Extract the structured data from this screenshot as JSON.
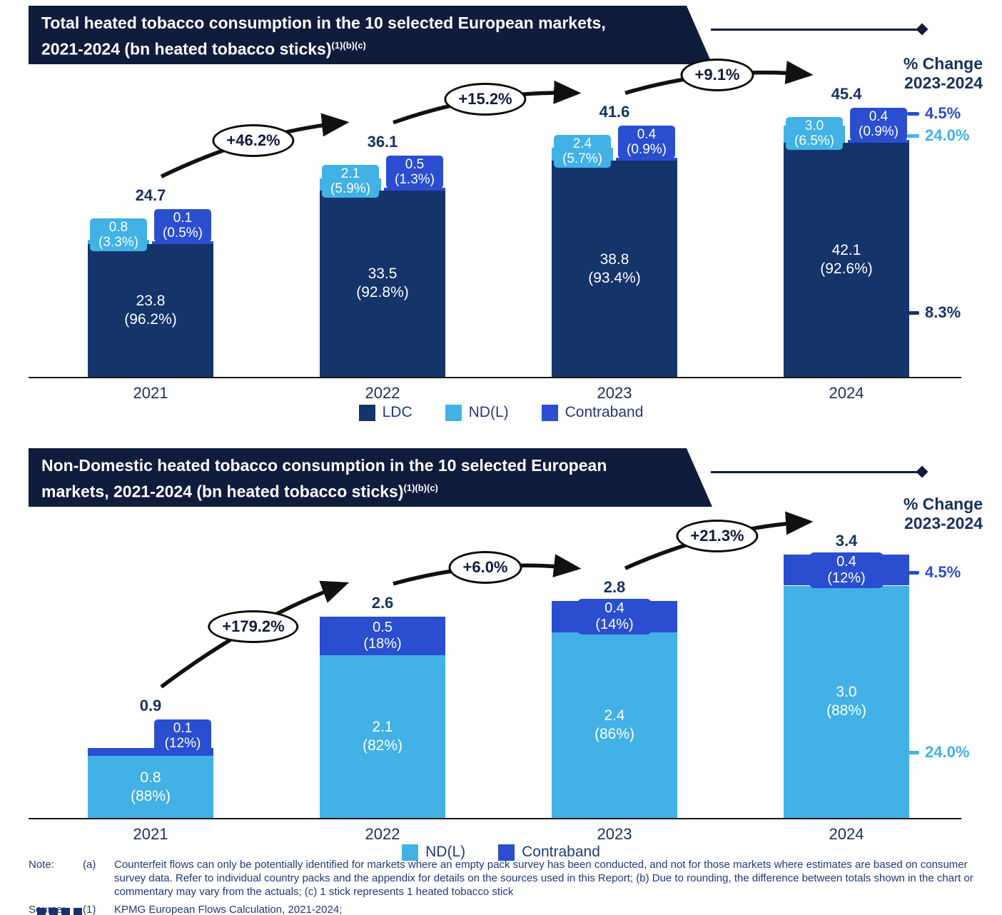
{
  "page": {
    "notes": {
      "note_label": "Note:",
      "note_marker": "(a)",
      "note_text": "Counterfeit flows can only be potentially identified for markets where an empty pack survey has been conducted, and not for those markets where estimates are based on consumer survey data.  Refer to individual country packs and the appendix for details on the sources used in this Report; (b) Due to rounding, the difference between totals shown in the chart or commentary may vary from the actuals; (c) 1 stick represents 1 heated tobacco stick",
      "source_label": "Source:",
      "source_marker": "(1)",
      "source_text": "KPMG European Flows Calculation, 2021-2024;"
    },
    "colors": {
      "banner_navy": "#101c3c",
      "ldc_navy": "#14346a",
      "ndl_light_blue": "#41b1e6",
      "contraband_blue": "#2a4ecf"
    }
  },
  "chart_data": [
    {
      "type": "bar",
      "stacked": true,
      "title_line1": "Total heated tobacco consumption in the 10 selected European markets,",
      "title_line2": "2021-2024 (bn heated tobacco sticks)",
      "title_sup": "(1)(b)(c)",
      "categories": [
        "2021",
        "2022",
        "2023",
        "2024"
      ],
      "series": [
        {
          "name": "LDC",
          "color": "#14346a",
          "values": [
            23.8,
            33.5,
            38.8,
            42.1
          ],
          "labels": [
            "23.8",
            "33.5",
            "38.8",
            "42.1"
          ],
          "pct_labels": [
            "(96.2%)",
            "(92.8%)",
            "(93.4%)",
            "(92.6%)"
          ]
        },
        {
          "name": "ND(L)",
          "color": "#41b1e6",
          "values": [
            0.8,
            2.1,
            2.4,
            3.0
          ],
          "labels": [
            "0.8",
            "2.1",
            "2.4",
            "3.0"
          ],
          "pct_labels": [
            "(3.3%)",
            "(5.9%)",
            "(5.7%)",
            "(6.5%)"
          ]
        },
        {
          "name": "Contraband",
          "color": "#2a4ecf",
          "values": [
            0.1,
            0.5,
            0.4,
            0.4
          ],
          "labels": [
            "0.1",
            "0.5",
            "0.4",
            "0.4"
          ],
          "pct_labels": [
            "(0.5%)",
            "(1.3%)",
            "(0.9%)",
            "(0.9%)"
          ]
        }
      ],
      "totals": [
        "24.7",
        "36.1",
        "41.6",
        "45.4"
      ],
      "growth_labels": [
        "+46.2%",
        "+15.2%",
        "+9.1%"
      ],
      "pct_change_header_line1": "% Change",
      "pct_change_header_line2": "2023-2024",
      "pct_change_items": [
        {
          "label": "4.5%",
          "series": "Contraband",
          "color": "#2a4ecf"
        },
        {
          "label": "24.0%",
          "series": "ND(L)",
          "color": "#41b1e6"
        },
        {
          "label": "8.3%",
          "series": "LDC",
          "color": "#14346a"
        }
      ],
      "legend": [
        "LDC",
        "ND(L)",
        "Contraband"
      ]
    },
    {
      "type": "bar",
      "stacked": true,
      "title_line1": "Non-Domestic heated tobacco consumption in the 10 selected European",
      "title_line2": "markets, 2021-2024 (bn heated tobacco sticks)",
      "title_sup": "(1)(b)(c)",
      "categories": [
        "2021",
        "2022",
        "2023",
        "2024"
      ],
      "series": [
        {
          "name": "ND(L)",
          "color": "#41b1e6",
          "values": [
            0.8,
            2.1,
            2.4,
            3.0
          ],
          "labels": [
            "0.8",
            "2.1",
            "2.4",
            "3.0"
          ],
          "pct_labels": [
            "(88%)",
            "(82%)",
            "(86%)",
            "(88%)"
          ]
        },
        {
          "name": "Contraband",
          "color": "#2a4ecf",
          "values": [
            0.1,
            0.5,
            0.4,
            0.4
          ],
          "labels": [
            "0.1",
            "0.5",
            "0.4",
            "0.4"
          ],
          "pct_labels": [
            "(12%)",
            "(18%)",
            "(14%)",
            "(12%)"
          ]
        }
      ],
      "totals": [
        "0.9",
        "2.6",
        "2.8",
        "3.4"
      ],
      "growth_labels": [
        "+179.2%",
        "+6.0%",
        "+21.3%"
      ],
      "pct_change_header_line1": "% Change",
      "pct_change_header_line2": "2023-2024",
      "pct_change_items": [
        {
          "label": "4.5%",
          "series": "Contraband",
          "color": "#2a4ecf"
        },
        {
          "label": "24.0%",
          "series": "ND(L)",
          "color": "#41b1e6"
        }
      ],
      "legend": [
        "ND(L)",
        "Contraband"
      ]
    }
  ]
}
